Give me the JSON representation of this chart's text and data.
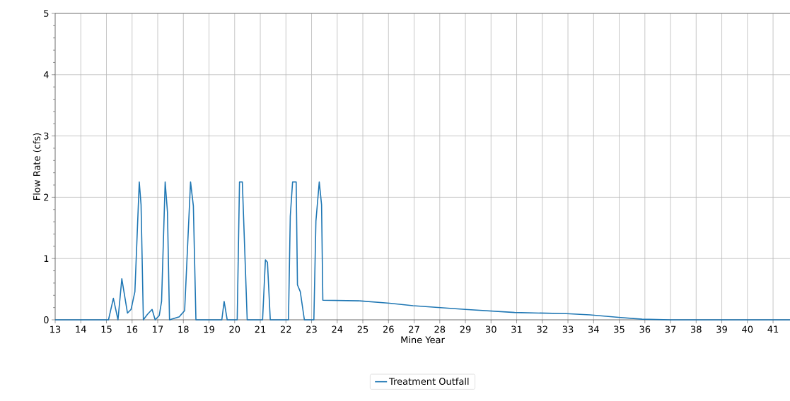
{
  "chart_data": {
    "type": "line",
    "xlabel": "Mine Year",
    "ylabel": "Flow Rate (cfs)",
    "xlim": [
      13,
      41.66
    ],
    "ylim": [
      0,
      5
    ],
    "xticks": [
      13,
      14,
      15,
      16,
      17,
      18,
      19,
      20,
      21,
      22,
      23,
      24,
      25,
      26,
      27,
      28,
      29,
      30,
      31,
      32,
      33,
      34,
      35,
      36,
      37,
      38,
      39,
      40,
      41
    ],
    "yticks": [
      0,
      {
        "value": 0.2,
        "label": null
      },
      {
        "value": 0.4,
        "label": null
      },
      {
        "value": 0.6,
        "label": null
      },
      {
        "value": 0.8,
        "label": null
      },
      1,
      {
        "value": 1.2,
        "label": null
      },
      {
        "value": 1.4,
        "label": null
      },
      {
        "value": 1.6,
        "label": null
      },
      {
        "value": 1.8,
        "label": null
      },
      2,
      {
        "value": 2.2,
        "label": null
      },
      {
        "value": 2.4,
        "label": null
      },
      {
        "value": 2.6,
        "label": null
      },
      {
        "value": 2.8,
        "label": null
      },
      3,
      {
        "value": 3.2,
        "label": null
      },
      {
        "value": 3.4,
        "label": null
      },
      {
        "value": 3.6,
        "label": null
      },
      {
        "value": 3.8,
        "label": null
      },
      4,
      {
        "value": 4.2,
        "label": null
      },
      {
        "value": 4.4,
        "label": null
      },
      {
        "value": 4.6,
        "label": null
      },
      {
        "value": 4.8,
        "label": null
      },
      5
    ],
    "grid": true,
    "legend": "bottom",
    "marker": "none",
    "line_style": "solid",
    "series": [
      {
        "name": "Treatment Outfall",
        "color": "#1f77b4",
        "x": [
          13,
          15.08,
          15.27,
          15.45,
          15.6,
          15.82,
          15.96,
          16.11,
          16.28,
          16.35,
          16.44,
          16.6,
          16.78,
          16.9,
          17.06,
          17.15,
          17.29,
          17.38,
          17.46,
          17.84,
          18.05,
          18.28,
          18.39,
          18.49,
          19.5,
          19.59,
          19.71,
          20.1,
          20.19,
          20.3,
          20.49,
          21.09,
          21.2,
          21.28,
          21.39,
          22.1,
          22.17,
          22.26,
          22.4,
          22.45,
          22.56,
          22.72,
          23.09,
          23.17,
          23.3,
          23.39,
          23.44,
          24.84,
          26.04,
          26.96,
          28.99,
          30.92,
          32.94,
          33.86,
          34.97,
          35.89,
          37,
          41.66
        ],
        "values": [
          0,
          0,
          0.35,
          0,
          0.67,
          0.11,
          0.17,
          0.46,
          2.25,
          1.88,
          0,
          0.09,
          0.17,
          0,
          0.07,
          0.3,
          2.25,
          1.76,
          0,
          0.05,
          0.15,
          2.25,
          1.86,
          0,
          0,
          0.3,
          0,
          0,
          2.25,
          2.25,
          0,
          0,
          0.98,
          0.94,
          0,
          0,
          1.69,
          2.25,
          2.25,
          0.57,
          0.46,
          0,
          0,
          1.61,
          2.25,
          1.88,
          0.32,
          0.31,
          0.27,
          0.23,
          0.17,
          0.12,
          0.1,
          0.08,
          0.04,
          0.01,
          0,
          0
        ]
      }
    ]
  }
}
